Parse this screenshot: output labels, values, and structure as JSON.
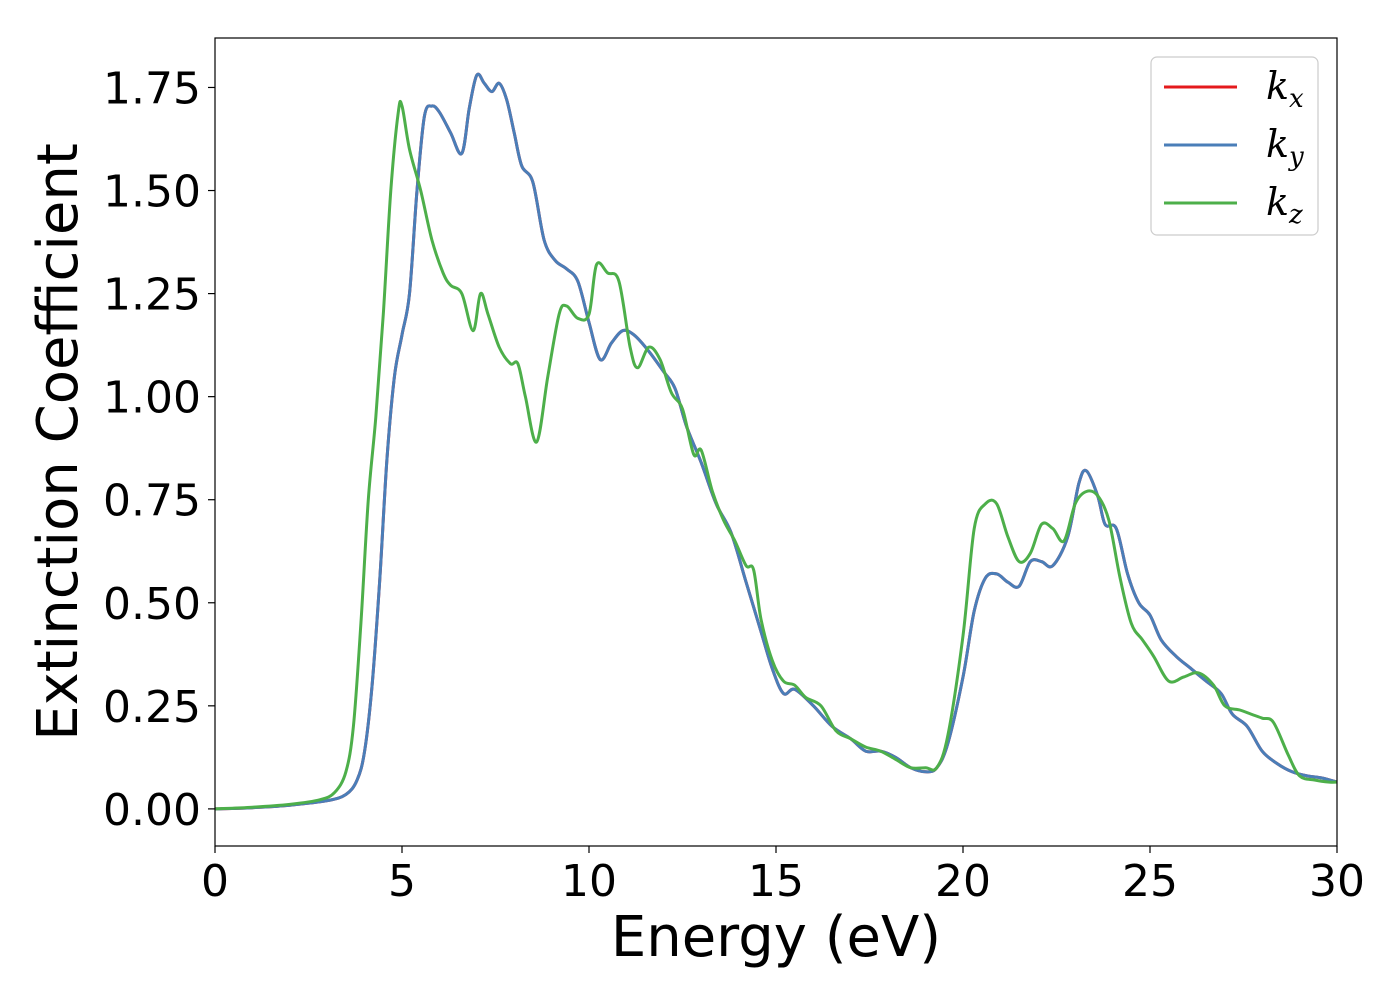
{
  "chart_data": {
    "type": "line",
    "xlabel": "Energy (eV)",
    "ylabel": "Extinction Coefficient",
    "xlim": [
      0,
      30
    ],
    "ylim": [
      -0.09,
      1.87
    ],
    "xticks": [
      0,
      5,
      10,
      15,
      20,
      25,
      30
    ],
    "xtick_labels": [
      "0",
      "5",
      "10",
      "15",
      "20",
      "25",
      "30"
    ],
    "yticks": [
      0.0,
      0.25,
      0.5,
      0.75,
      1.0,
      1.25,
      1.5,
      1.75
    ],
    "ytick_labels": [
      "0.00",
      "0.25",
      "0.50",
      "0.75",
      "1.00",
      "1.25",
      "1.50",
      "1.75"
    ],
    "grid": false,
    "legend": "top-right",
    "series": [
      {
        "name": "kx",
        "label_base": "k",
        "label_sub": "x",
        "color": "#e41a1c",
        "points": [
          [
            0,
            0.0
          ],
          [
            1,
            0.003
          ],
          [
            2,
            0.009
          ],
          [
            3,
            0.02
          ],
          [
            3.5,
            0.035
          ],
          [
            3.8,
            0.07
          ],
          [
            4.0,
            0.14
          ],
          [
            4.2,
            0.3
          ],
          [
            4.4,
            0.55
          ],
          [
            4.6,
            0.85
          ],
          [
            4.8,
            1.05
          ],
          [
            5.0,
            1.15
          ],
          [
            5.2,
            1.25
          ],
          [
            5.4,
            1.5
          ],
          [
            5.6,
            1.68
          ],
          [
            5.8,
            1.705
          ],
          [
            6.0,
            1.69
          ],
          [
            6.3,
            1.64
          ],
          [
            6.6,
            1.59
          ],
          [
            6.8,
            1.7
          ],
          [
            7.0,
            1.78
          ],
          [
            7.2,
            1.76
          ],
          [
            7.4,
            1.74
          ],
          [
            7.6,
            1.76
          ],
          [
            7.8,
            1.72
          ],
          [
            8.0,
            1.64
          ],
          [
            8.2,
            1.56
          ],
          [
            8.5,
            1.52
          ],
          [
            8.8,
            1.38
          ],
          [
            9.1,
            1.33
          ],
          [
            9.4,
            1.31
          ],
          [
            9.7,
            1.28
          ],
          [
            10.0,
            1.18
          ],
          [
            10.3,
            1.09
          ],
          [
            10.6,
            1.13
          ],
          [
            10.9,
            1.16
          ],
          [
            11.2,
            1.15
          ],
          [
            11.6,
            1.11
          ],
          [
            12.0,
            1.06
          ],
          [
            12.3,
            1.02
          ],
          [
            12.6,
            0.93
          ],
          [
            13.0,
            0.84
          ],
          [
            13.4,
            0.74
          ],
          [
            13.8,
            0.67
          ],
          [
            14.2,
            0.55
          ],
          [
            14.6,
            0.43
          ],
          [
            14.9,
            0.34
          ],
          [
            15.2,
            0.28
          ],
          [
            15.5,
            0.29
          ],
          [
            16.0,
            0.25
          ],
          [
            16.5,
            0.2
          ],
          [
            17.0,
            0.17
          ],
          [
            17.4,
            0.14
          ],
          [
            17.8,
            0.14
          ],
          [
            18.2,
            0.125
          ],
          [
            18.6,
            0.1
          ],
          [
            19.0,
            0.09
          ],
          [
            19.3,
            0.1
          ],
          [
            19.6,
            0.16
          ],
          [
            20.0,
            0.32
          ],
          [
            20.3,
            0.48
          ],
          [
            20.6,
            0.56
          ],
          [
            20.9,
            0.57
          ],
          [
            21.2,
            0.55
          ],
          [
            21.5,
            0.54
          ],
          [
            21.8,
            0.6
          ],
          [
            22.1,
            0.6
          ],
          [
            22.4,
            0.59
          ],
          [
            22.8,
            0.66
          ],
          [
            23.1,
            0.79
          ],
          [
            23.3,
            0.82
          ],
          [
            23.6,
            0.76
          ],
          [
            23.8,
            0.69
          ],
          [
            24.1,
            0.68
          ],
          [
            24.4,
            0.57
          ],
          [
            24.7,
            0.5
          ],
          [
            25.0,
            0.47
          ],
          [
            25.3,
            0.41
          ],
          [
            25.7,
            0.37
          ],
          [
            26.1,
            0.34
          ],
          [
            26.5,
            0.31
          ],
          [
            26.9,
            0.28
          ],
          [
            27.2,
            0.23
          ],
          [
            27.6,
            0.2
          ],
          [
            28.0,
            0.14
          ],
          [
            28.4,
            0.11
          ],
          [
            28.8,
            0.09
          ],
          [
            29.2,
            0.08
          ],
          [
            29.6,
            0.075
          ],
          [
            30.0,
            0.065
          ]
        ]
      },
      {
        "name": "ky",
        "label_base": "k",
        "label_sub": "y",
        "color": "#4a7eb8",
        "points": [
          [
            0,
            0.0
          ],
          [
            1,
            0.003
          ],
          [
            2,
            0.009
          ],
          [
            3,
            0.02
          ],
          [
            3.5,
            0.035
          ],
          [
            3.8,
            0.07
          ],
          [
            4.0,
            0.14
          ],
          [
            4.2,
            0.3
          ],
          [
            4.4,
            0.55
          ],
          [
            4.6,
            0.85
          ],
          [
            4.8,
            1.05
          ],
          [
            5.0,
            1.15
          ],
          [
            5.2,
            1.25
          ],
          [
            5.4,
            1.5
          ],
          [
            5.6,
            1.68
          ],
          [
            5.8,
            1.705
          ],
          [
            6.0,
            1.69
          ],
          [
            6.3,
            1.64
          ],
          [
            6.6,
            1.59
          ],
          [
            6.8,
            1.7
          ],
          [
            7.0,
            1.78
          ],
          [
            7.2,
            1.76
          ],
          [
            7.4,
            1.74
          ],
          [
            7.6,
            1.76
          ],
          [
            7.8,
            1.72
          ],
          [
            8.0,
            1.64
          ],
          [
            8.2,
            1.56
          ],
          [
            8.5,
            1.52
          ],
          [
            8.8,
            1.38
          ],
          [
            9.1,
            1.33
          ],
          [
            9.4,
            1.31
          ],
          [
            9.7,
            1.28
          ],
          [
            10.0,
            1.18
          ],
          [
            10.3,
            1.09
          ],
          [
            10.6,
            1.13
          ],
          [
            10.9,
            1.16
          ],
          [
            11.2,
            1.15
          ],
          [
            11.6,
            1.11
          ],
          [
            12.0,
            1.06
          ],
          [
            12.3,
            1.02
          ],
          [
            12.6,
            0.93
          ],
          [
            13.0,
            0.84
          ],
          [
            13.4,
            0.74
          ],
          [
            13.8,
            0.67
          ],
          [
            14.2,
            0.55
          ],
          [
            14.6,
            0.43
          ],
          [
            14.9,
            0.34
          ],
          [
            15.2,
            0.28
          ],
          [
            15.5,
            0.29
          ],
          [
            16.0,
            0.25
          ],
          [
            16.5,
            0.2
          ],
          [
            17.0,
            0.17
          ],
          [
            17.4,
            0.14
          ],
          [
            17.8,
            0.14
          ],
          [
            18.2,
            0.125
          ],
          [
            18.6,
            0.1
          ],
          [
            19.0,
            0.09
          ],
          [
            19.3,
            0.1
          ],
          [
            19.6,
            0.16
          ],
          [
            20.0,
            0.32
          ],
          [
            20.3,
            0.48
          ],
          [
            20.6,
            0.56
          ],
          [
            20.9,
            0.57
          ],
          [
            21.2,
            0.55
          ],
          [
            21.5,
            0.54
          ],
          [
            21.8,
            0.6
          ],
          [
            22.1,
            0.6
          ],
          [
            22.4,
            0.59
          ],
          [
            22.8,
            0.66
          ],
          [
            23.1,
            0.79
          ],
          [
            23.3,
            0.82
          ],
          [
            23.6,
            0.76
          ],
          [
            23.8,
            0.69
          ],
          [
            24.1,
            0.68
          ],
          [
            24.4,
            0.57
          ],
          [
            24.7,
            0.5
          ],
          [
            25.0,
            0.47
          ],
          [
            25.3,
            0.41
          ],
          [
            25.7,
            0.37
          ],
          [
            26.1,
            0.34
          ],
          [
            26.5,
            0.31
          ],
          [
            26.9,
            0.28
          ],
          [
            27.2,
            0.23
          ],
          [
            27.6,
            0.2
          ],
          [
            28.0,
            0.14
          ],
          [
            28.4,
            0.11
          ],
          [
            28.8,
            0.09
          ],
          [
            29.2,
            0.08
          ],
          [
            29.6,
            0.075
          ],
          [
            30.0,
            0.065
          ]
        ]
      },
      {
        "name": "kz",
        "label_base": "k",
        "label_sub": "z",
        "color": "#4daf4a",
        "points": [
          [
            0,
            0.0
          ],
          [
            1,
            0.004
          ],
          [
            2,
            0.011
          ],
          [
            2.8,
            0.022
          ],
          [
            3.2,
            0.04
          ],
          [
            3.5,
            0.09
          ],
          [
            3.7,
            0.2
          ],
          [
            3.9,
            0.45
          ],
          [
            4.1,
            0.75
          ],
          [
            4.3,
            0.95
          ],
          [
            4.5,
            1.2
          ],
          [
            4.7,
            1.5
          ],
          [
            4.9,
            1.69
          ],
          [
            5.0,
            1.705
          ],
          [
            5.2,
            1.6
          ],
          [
            5.5,
            1.5
          ],
          [
            5.8,
            1.38
          ],
          [
            6.1,
            1.3
          ],
          [
            6.3,
            1.27
          ],
          [
            6.6,
            1.25
          ],
          [
            6.9,
            1.16
          ],
          [
            7.1,
            1.25
          ],
          [
            7.3,
            1.2
          ],
          [
            7.6,
            1.12
          ],
          [
            7.9,
            1.08
          ],
          [
            8.1,
            1.08
          ],
          [
            8.3,
            1.0
          ],
          [
            8.6,
            0.89
          ],
          [
            8.9,
            1.05
          ],
          [
            9.2,
            1.2
          ],
          [
            9.4,
            1.22
          ],
          [
            9.7,
            1.19
          ],
          [
            10.0,
            1.2
          ],
          [
            10.2,
            1.32
          ],
          [
            10.5,
            1.3
          ],
          [
            10.8,
            1.28
          ],
          [
            11.1,
            1.12
          ],
          [
            11.3,
            1.07
          ],
          [
            11.6,
            1.12
          ],
          [
            11.9,
            1.09
          ],
          [
            12.2,
            1.01
          ],
          [
            12.5,
            0.97
          ],
          [
            12.8,
            0.86
          ],
          [
            13.0,
            0.87
          ],
          [
            13.3,
            0.77
          ],
          [
            13.6,
            0.7
          ],
          [
            13.9,
            0.65
          ],
          [
            14.2,
            0.59
          ],
          [
            14.4,
            0.58
          ],
          [
            14.6,
            0.46
          ],
          [
            14.9,
            0.36
          ],
          [
            15.2,
            0.31
          ],
          [
            15.5,
            0.3
          ],
          [
            15.8,
            0.27
          ],
          [
            16.2,
            0.25
          ],
          [
            16.6,
            0.19
          ],
          [
            17.0,
            0.17
          ],
          [
            17.4,
            0.15
          ],
          [
            17.8,
            0.14
          ],
          [
            18.2,
            0.12
          ],
          [
            18.6,
            0.1
          ],
          [
            19.0,
            0.1
          ],
          [
            19.3,
            0.1
          ],
          [
            19.6,
            0.18
          ],
          [
            20.0,
            0.42
          ],
          [
            20.3,
            0.68
          ],
          [
            20.6,
            0.74
          ],
          [
            20.9,
            0.74
          ],
          [
            21.2,
            0.66
          ],
          [
            21.5,
            0.6
          ],
          [
            21.8,
            0.62
          ],
          [
            22.1,
            0.69
          ],
          [
            22.4,
            0.68
          ],
          [
            22.7,
            0.65
          ],
          [
            23.0,
            0.74
          ],
          [
            23.3,
            0.77
          ],
          [
            23.6,
            0.76
          ],
          [
            23.9,
            0.7
          ],
          [
            24.2,
            0.56
          ],
          [
            24.5,
            0.45
          ],
          [
            24.8,
            0.41
          ],
          [
            25.1,
            0.37
          ],
          [
            25.5,
            0.31
          ],
          [
            25.9,
            0.32
          ],
          [
            26.3,
            0.33
          ],
          [
            26.7,
            0.3
          ],
          [
            27.0,
            0.25
          ],
          [
            27.4,
            0.24
          ],
          [
            27.7,
            0.23
          ],
          [
            28.0,
            0.22
          ],
          [
            28.3,
            0.21
          ],
          [
            28.7,
            0.13
          ],
          [
            29.0,
            0.08
          ],
          [
            29.4,
            0.07
          ],
          [
            29.8,
            0.065
          ],
          [
            30.0,
            0.065
          ]
        ]
      }
    ]
  }
}
